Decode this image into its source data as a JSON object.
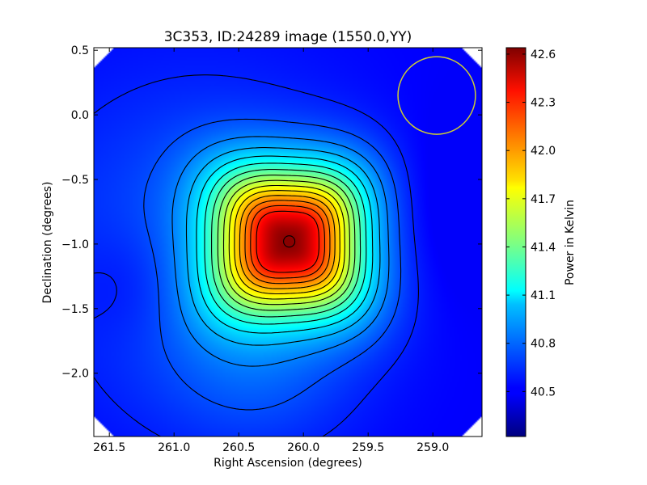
{
  "chart_data": {
    "type": "heatmap",
    "title": "3C353, ID:24289 image (1550.0,YY)",
    "xlabel": "Right Ascension (degrees)",
    "ylabel": "Declination (degrees)",
    "colorbar_label": "Power in Kelvin",
    "xlim": [
      261.62,
      258.62
    ],
    "ylim": [
      -2.49,
      0.52
    ],
    "x_ticks": [
      {
        "value": 261.5,
        "label": "261.5"
      },
      {
        "value": 261.0,
        "label": "261.0"
      },
      {
        "value": 260.5,
        "label": "260.5"
      },
      {
        "value": 260.0,
        "label": "260.0"
      },
      {
        "value": 259.5,
        "label": "259.5"
      },
      {
        "value": 259.0,
        "label": "259.0"
      }
    ],
    "y_ticks": [
      {
        "value": 0.5,
        "label": "0.5"
      },
      {
        "value": 0.0,
        "label": "0.0"
      },
      {
        "value": -0.5,
        "label": "−0.5"
      },
      {
        "value": -1.0,
        "label": "−1.0"
      },
      {
        "value": -1.5,
        "label": "−1.5"
      },
      {
        "value": -2.0,
        "label": "−2.0"
      }
    ],
    "colorbar_range": [
      40.22,
      42.64
    ],
    "colorbar_ticks": [
      {
        "value": 40.5,
        "label": "40.5"
      },
      {
        "value": 40.8,
        "label": "40.8"
      },
      {
        "value": 41.1,
        "label": "41.1"
      },
      {
        "value": 41.4,
        "label": "41.4"
      },
      {
        "value": 41.7,
        "label": "41.7"
      },
      {
        "value": 42.0,
        "label": "42.0"
      },
      {
        "value": 42.3,
        "label": "42.3"
      },
      {
        "value": 42.6,
        "label": "42.6"
      }
    ],
    "colormap": "jet",
    "source_peak": {
      "ra": 260.11,
      "dec": -0.98,
      "value": 42.62
    },
    "beam_circle": {
      "ra": 258.97,
      "dec": 0.15,
      "radius_deg": 0.3,
      "color": "#cccc33"
    },
    "contour_color": "#000000"
  }
}
